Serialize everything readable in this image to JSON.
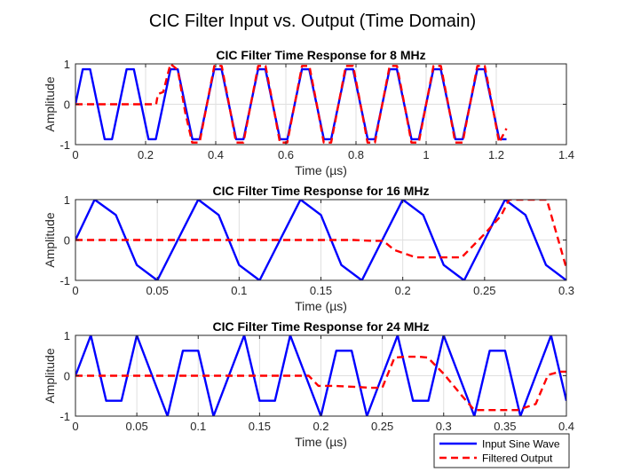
{
  "figure": {
    "title": "CIC Filter Input vs. Output (Time Domain)"
  },
  "legend": {
    "placement": "bottom-right",
    "entries": [
      "Input Sine Wave",
      "Filtered Output"
    ]
  },
  "colors": {
    "input": "#0000ff",
    "output": "#ff0000",
    "grid": "#dfdfdf",
    "axes": "#262626"
  },
  "chart_data": [
    {
      "type": "line",
      "title": "CIC Filter Time Response for 8 MHz",
      "xlabel": "Time (µs)",
      "ylabel": "Amplitude",
      "xlim": [
        0,
        1.4
      ],
      "ylim": [
        -1,
        1
      ],
      "xticks": [
        0,
        0.2,
        0.4,
        0.6,
        0.8,
        1,
        1.2,
        1.4
      ],
      "xtick_labels": [
        "0",
        "0.2",
        "0.4",
        "0.6",
        "0.8",
        "1",
        "1.2",
        "1.4"
      ],
      "yticks": [
        -1,
        0,
        1
      ],
      "ytick_labels": [
        "-1",
        "0",
        "1"
      ],
      "grid": true,
      "series": [
        {
          "name": "Input Sine Wave",
          "style": "solid",
          "x": [
            0,
            0.0208,
            0.0417,
            0.0625,
            0.0833,
            0.1042,
            0.125,
            0.1458,
            0.1667,
            0.1875,
            0.2083,
            0.2292,
            0.25,
            0.2708,
            0.2917,
            0.3125,
            0.3333,
            0.3542,
            0.375,
            0.3958,
            0.4167,
            0.4375,
            0.4583,
            0.4792,
            0.5,
            0.5208,
            0.5417,
            0.5625,
            0.5833,
            0.6042,
            0.625,
            0.6458,
            0.6667,
            0.6875,
            0.7083,
            0.7292,
            0.75,
            0.7708,
            0.7917,
            0.8125,
            0.8333,
            0.8542,
            0.875,
            0.8958,
            0.9167,
            0.9375,
            0.9583,
            0.9792,
            1,
            1.0208,
            1.0417,
            1.0625,
            1.0833,
            1.1042,
            1.125,
            1.1458,
            1.1667,
            1.1875,
            1.2083,
            1.2292
          ],
          "y": [
            0,
            0.866,
            0.866,
            0,
            -0.866,
            -0.866,
            0,
            0.866,
            0.866,
            0,
            -0.866,
            -0.866,
            0,
            0.866,
            0.866,
            0,
            -0.866,
            -0.866,
            0,
            0.866,
            0.866,
            0,
            -0.866,
            -0.866,
            0,
            0.866,
            0.866,
            0,
            -0.866,
            -0.866,
            0,
            0.866,
            0.866,
            0,
            -0.866,
            -0.866,
            0,
            0.866,
            0.866,
            0,
            -0.866,
            -0.866,
            0,
            0.866,
            0.866,
            0,
            -0.866,
            -0.866,
            0,
            0.866,
            0.866,
            0,
            -0.866,
            -0.866,
            0,
            0.866,
            0.866,
            0,
            -0.866,
            -0.866
          ]
        },
        {
          "name": "Filtered Output",
          "style": "dashed",
          "x": [
            0,
            0.23,
            0.235,
            0.25,
            0.271,
            0.292,
            0.313,
            0.333,
            0.354,
            0.375,
            0.396,
            0.417,
            0.438,
            0.458,
            0.479,
            0.5,
            0.521,
            0.542,
            0.563,
            0.583,
            0.604,
            0.625,
            0.646,
            0.667,
            0.688,
            0.708,
            0.729,
            0.75,
            0.771,
            0.792,
            0.813,
            0.833,
            0.854,
            0.875,
            0.896,
            0.917,
            0.938,
            0.958,
            0.979,
            1,
            1.021,
            1.042,
            1.063,
            1.083,
            1.104,
            1.125,
            1.146,
            1.167,
            1.188,
            1.208,
            1.229
          ],
          "y": [
            0,
            0,
            0.25,
            0.3,
            1,
            0.85,
            -0.2,
            -0.95,
            -0.95,
            0,
            0.95,
            0.95,
            0,
            -0.95,
            -0.95,
            0,
            0.95,
            0.95,
            0,
            -0.95,
            -0.95,
            0,
            0.95,
            0.95,
            0,
            -0.95,
            -0.95,
            0,
            0.95,
            0.95,
            0,
            -0.95,
            -0.95,
            0,
            0.95,
            0.95,
            0,
            -0.95,
            -0.95,
            0,
            0.95,
            0.95,
            0,
            -0.95,
            -0.95,
            0,
            0.95,
            0.95,
            0,
            -0.95,
            -0.6
          ]
        }
      ]
    },
    {
      "type": "line",
      "title": "CIC Filter Time Response for 16 MHz",
      "xlabel": "Time (µs)",
      "ylabel": "Amplitude",
      "xlim": [
        0,
        0.3
      ],
      "ylim": [
        -1,
        1
      ],
      "xticks": [
        0,
        0.05,
        0.1,
        0.15,
        0.2,
        0.25,
        0.3
      ],
      "xtick_labels": [
        "0",
        "0.05",
        "0.1",
        "0.15",
        "0.2",
        "0.25",
        "0.3"
      ],
      "yticks": [
        -1,
        0,
        1
      ],
      "ytick_labels": [
        "-1",
        "0",
        "1"
      ],
      "grid": true,
      "series": [
        {
          "name": "Input Sine Wave",
          "style": "solid",
          "x": [
            0,
            0.0117,
            0.0247,
            0.0375,
            0.05,
            0.0625,
            0.075,
            0.0875,
            0.1,
            0.1125,
            0.125,
            0.1375,
            0.15,
            0.1625,
            0.175,
            0.1875,
            0.2,
            0.2125,
            0.225,
            0.2375,
            0.25,
            0.2625,
            0.275,
            0.2875,
            0.3
          ],
          "y": [
            0,
            1,
            0.62,
            -0.62,
            -1,
            0,
            1,
            0.62,
            -0.62,
            -1,
            0,
            1,
            0.62,
            -0.62,
            -1,
            0,
            1,
            0.62,
            -0.62,
            -1,
            0,
            1,
            0.62,
            -0.62,
            -1
          ]
        },
        {
          "name": "Filtered Output",
          "style": "dashed",
          "x": [
            0,
            0.17,
            0.181,
            0.188,
            0.195,
            0.208,
            0.225,
            0.236,
            0.25,
            0.26,
            0.265,
            0.28,
            0.288,
            0.3
          ],
          "y": [
            0,
            0,
            -0.02,
            -0.02,
            -0.25,
            -0.43,
            -0.43,
            -0.43,
            0.15,
            0.6,
            1,
            1,
            1,
            -0.7
          ]
        }
      ]
    },
    {
      "type": "line",
      "title": "CIC Filter Time Response for 24 MHz",
      "xlabel": "Time (µs)",
      "ylabel": "Amplitude",
      "xlim": [
        0,
        0.4
      ],
      "ylim": [
        -1,
        1
      ],
      "xticks": [
        0,
        0.05,
        0.1,
        0.15,
        0.2,
        0.25,
        0.3,
        0.35,
        0.4
      ],
      "xtick_labels": [
        "0",
        "0.05",
        "0.1",
        "0.15",
        "0.2",
        "0.25",
        "0.3",
        "0.35",
        "0.4"
      ],
      "yticks": [
        -1,
        0,
        1
      ],
      "ytick_labels": [
        "-1",
        "0",
        "1"
      ],
      "grid": true,
      "series": [
        {
          "name": "Input Sine Wave",
          "style": "solid",
          "x": [
            0,
            0.0125,
            0.025,
            0.0375,
            0.05,
            0.0625,
            0.075,
            0.0875,
            0.1,
            0.1125,
            0.125,
            0.1375,
            0.15,
            0.1625,
            0.175,
            0.1875,
            0.2,
            0.2125,
            0.225,
            0.2375,
            0.25,
            0.2625,
            0.275,
            0.2875,
            0.3,
            0.3125,
            0.325,
            0.3375,
            0.35,
            0.3625,
            0.375,
            0.3875,
            0.4
          ],
          "y": [
            0,
            1,
            -0.62,
            -0.62,
            1,
            0,
            -1,
            0.62,
            0.62,
            -1,
            0,
            1,
            -0.62,
            -0.62,
            1,
            0,
            -1,
            0.62,
            0.62,
            -1,
            0,
            1,
            -0.62,
            -0.62,
            1,
            0,
            -1,
            0.62,
            0.62,
            -1,
            0,
            1,
            -0.62
          ]
        },
        {
          "name": "Filtered Output",
          "style": "dashed",
          "x": [
            0,
            0.19,
            0.198,
            0.21,
            0.23,
            0.24,
            0.25,
            0.26,
            0.268,
            0.28,
            0.287,
            0.3,
            0.315,
            0.325,
            0.335,
            0.35,
            0.36,
            0.375,
            0.385,
            0.395,
            0.4
          ],
          "y": [
            0,
            0,
            -0.25,
            -0.25,
            -0.28,
            -0.3,
            -0.3,
            0.45,
            0.47,
            0.47,
            0.45,
            0.05,
            -0.5,
            -0.85,
            -0.85,
            -0.85,
            -0.85,
            -0.7,
            0.02,
            0.1,
            0.1
          ]
        }
      ]
    }
  ]
}
